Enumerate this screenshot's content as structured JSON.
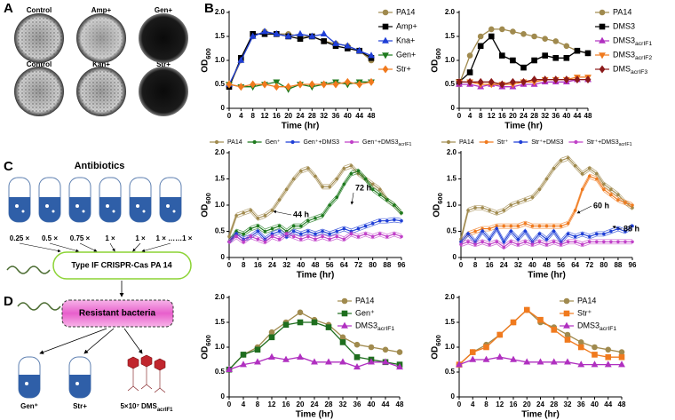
{
  "panel_labels": [
    "A",
    "B",
    "C",
    "D"
  ],
  "plates": {
    "labels": [
      "Control",
      "Amp+",
      "Gen+",
      "Control",
      "Kan+",
      "Str+"
    ]
  },
  "diagram": {
    "title": "Antibiotics",
    "concentrations": [
      "0.25 ×",
      "0.5 ×",
      "0.75 ×",
      "1 ×",
      "1 ×",
      "1 × ……1 ×"
    ],
    "strain": "Type IF CRISPR-Cas PA 14",
    "resistant": "Resistant bacteria",
    "outputs": [
      "Gen⁺",
      "Str+",
      "5×10⁷ DMSacrIF1"
    ]
  },
  "chart_data": [
    {
      "type": "line",
      "x_label": "Time (hr)",
      "y_label": "OD600",
      "legend": "right",
      "x": [
        0,
        4,
        8,
        12,
        16,
        20,
        24,
        28,
        32,
        36,
        40,
        44,
        48
      ],
      "xlim": [
        0,
        48
      ],
      "xticks": [
        0,
        4,
        8,
        12,
        16,
        20,
        24,
        28,
        32,
        36,
        40,
        44,
        48
      ],
      "ylim": [
        0,
        2
      ],
      "yticks": [
        0,
        0.5,
        {
          "value": 1,
          "label": "1.0"
        },
        1.5,
        {
          "value": 2,
          "label": "2.0"
        }
      ],
      "series": [
        {
          "name": "PA14",
          "color": "#a08a4e",
          "marker": "circle",
          "values": [
            0.45,
            1.0,
            1.5,
            1.6,
            1.55,
            1.55,
            1.5,
            1.5,
            1.4,
            1.35,
            1.3,
            1.2,
            1.0
          ]
        },
        {
          "name": "Amp+",
          "color": "#000000",
          "marker": "square",
          "values": [
            0.45,
            1.05,
            1.55,
            1.55,
            1.55,
            1.5,
            1.45,
            1.5,
            1.4,
            1.3,
            1.25,
            1.2,
            1.05
          ]
        },
        {
          "name": "Kna+",
          "color": "#1f3fd6",
          "marker": "triangle",
          "values": [
            0.5,
            1.0,
            1.5,
            1.6,
            1.55,
            1.5,
            1.55,
            1.5,
            1.55,
            1.35,
            1.3,
            1.2,
            1.1
          ]
        },
        {
          "name": "Gen+",
          "color": "#1e7a1e",
          "marker": "invtriangle",
          "values": [
            0.5,
            0.45,
            0.45,
            0.5,
            0.55,
            0.4,
            0.5,
            0.45,
            0.5,
            0.55,
            0.5,
            0.55,
            0.55
          ]
        },
        {
          "name": "Str+",
          "color": "#f07a1e",
          "marker": "diamond",
          "values": [
            0.5,
            0.45,
            0.5,
            0.5,
            0.45,
            0.45,
            0.5,
            0.5,
            0.5,
            0.5,
            0.55,
            0.5,
            0.55
          ]
        }
      ]
    },
    {
      "type": "line",
      "x_label": "Time (hr)",
      "y_label": "OD600",
      "legend": "right",
      "x": [
        0,
        4,
        8,
        12,
        16,
        20,
        24,
        28,
        32,
        36,
        40,
        44,
        48
      ],
      "xlim": [
        0,
        48
      ],
      "xticks": [
        0,
        4,
        8,
        12,
        16,
        20,
        24,
        28,
        32,
        36,
        40,
        44,
        48
      ],
      "ylim": [
        0,
        2
      ],
      "yticks": [
        0,
        0.5,
        {
          "value": 1,
          "label": "1.0"
        },
        1.5,
        {
          "value": 2,
          "label": "2.0"
        }
      ],
      "series": [
        {
          "name": "PA14",
          "color": "#a08a4e",
          "marker": "circle",
          "values": [
            0.5,
            1.1,
            1.5,
            1.65,
            1.65,
            1.6,
            1.55,
            1.5,
            1.45,
            1.4,
            1.3,
            1.2,
            1.15
          ]
        },
        {
          "name": "DMS3",
          "color": "#000000",
          "marker": "square",
          "values": [
            0.55,
            0.75,
            1.3,
            1.5,
            1.1,
            1.0,
            0.85,
            1.0,
            1.1,
            1.05,
            1.05,
            1.2,
            1.15
          ]
        },
        {
          "name": "DMS3acrIF1",
          "color": "#b030c0",
          "marker": "triangle",
          "values": [
            0.5,
            0.5,
            0.45,
            0.5,
            0.45,
            0.45,
            0.5,
            0.5,
            0.55,
            0.55,
            0.55,
            0.6,
            0.6
          ]
        },
        {
          "name": "DMS3acrIF2",
          "color": "#f07a1e",
          "marker": "invtriangle",
          "values": [
            0.55,
            0.55,
            0.5,
            0.5,
            0.5,
            0.5,
            0.55,
            0.55,
            0.6,
            0.6,
            0.6,
            0.65,
            0.65
          ]
        },
        {
          "name": "DMSacrIF3",
          "color": "#8b1a1a",
          "marker": "diamond",
          "values": [
            0.55,
            0.55,
            0.55,
            0.55,
            0.5,
            0.55,
            0.55,
            0.6,
            0.6,
            0.6,
            0.6,
            0.6,
            0.6
          ]
        }
      ]
    },
    {
      "type": "line",
      "x_label": "Time (hr)",
      "y_label": "OD600",
      "legend": "top",
      "annotations": [
        "44 h",
        "72 h"
      ],
      "x": [
        0,
        4,
        8,
        12,
        16,
        20,
        24,
        28,
        32,
        36,
        40,
        44,
        48,
        52,
        56,
        60,
        64,
        68,
        72,
        76,
        80,
        84,
        88,
        92,
        96
      ],
      "xlim": [
        0,
        96
      ],
      "xticks": [
        0,
        8,
        16,
        24,
        32,
        40,
        48,
        56,
        64,
        72,
        80,
        88,
        96
      ],
      "ylim": [
        0,
        2
      ],
      "yticks": [
        0,
        0.5,
        {
          "value": 1,
          "label": "1.0"
        },
        1.5,
        {
          "value": 2,
          "label": "2.0"
        }
      ],
      "series": [
        {
          "name": "PA14",
          "color": "#a08a4e",
          "marker": "circle",
          "values": [
            0.4,
            0.8,
            0.85,
            0.9,
            0.75,
            0.8,
            0.9,
            1.1,
            1.3,
            1.5,
            1.65,
            1.7,
            1.55,
            1.35,
            1.35,
            1.5,
            1.7,
            1.75,
            1.6,
            1.5,
            1.4,
            1.3,
            1.1,
            1.0,
            0.85
          ]
        },
        {
          "name": "Gen⁺",
          "color": "#1e7a1e",
          "marker": "circle",
          "values": [
            0.3,
            0.5,
            0.45,
            0.55,
            0.6,
            0.5,
            0.55,
            0.6,
            0.5,
            0.6,
            0.6,
            0.7,
            0.75,
            0.8,
            1.0,
            1.15,
            1.4,
            1.6,
            1.65,
            1.5,
            1.3,
            1.2,
            1.1,
            1.0,
            0.85
          ]
        },
        {
          "name": "Gen⁺+DMS3",
          "color": "#1f3fd6",
          "marker": "circle",
          "values": [
            0.3,
            0.45,
            0.35,
            0.4,
            0.5,
            0.35,
            0.45,
            0.5,
            0.4,
            0.5,
            0.45,
            0.5,
            0.45,
            0.5,
            0.45,
            0.5,
            0.55,
            0.5,
            0.55,
            0.6,
            0.65,
            0.7,
            0.7,
            0.72,
            0.7
          ]
        },
        {
          "name": "Gen⁺+DMS3acrIF1",
          "color": "#c040c8",
          "marker": "circle",
          "values": [
            0.3,
            0.4,
            0.3,
            0.4,
            0.35,
            0.3,
            0.4,
            0.35,
            0.45,
            0.4,
            0.35,
            0.4,
            0.35,
            0.4,
            0.35,
            0.4,
            0.35,
            0.45,
            0.4,
            0.45,
            0.4,
            0.45,
            0.4,
            0.45,
            0.4
          ]
        }
      ]
    },
    {
      "type": "line",
      "x_label": "Time (hr)",
      "y_label": "OD600",
      "legend": "top",
      "annotations": [
        "60 h",
        "88 h"
      ],
      "x": [
        0,
        4,
        8,
        12,
        16,
        20,
        24,
        28,
        32,
        36,
        40,
        44,
        48,
        52,
        56,
        60,
        64,
        68,
        72,
        76,
        80,
        84,
        88,
        92,
        96
      ],
      "xlim": [
        0,
        96
      ],
      "xticks": [
        0,
        8,
        16,
        24,
        32,
        40,
        48,
        56,
        64,
        72,
        80,
        88,
        96
      ],
      "ylim": [
        0,
        2
      ],
      "yticks": [
        0,
        0.5,
        {
          "value": 1,
          "label": "1.0"
        },
        1.5,
        {
          "value": 2,
          "label": "2.0"
        }
      ],
      "series": [
        {
          "name": "PA14",
          "color": "#a08a4e",
          "marker": "circle",
          "values": [
            0.35,
            0.9,
            0.95,
            0.95,
            0.9,
            0.85,
            0.9,
            1.0,
            1.05,
            1.1,
            1.15,
            1.3,
            1.5,
            1.7,
            1.85,
            1.9,
            1.75,
            1.6,
            1.7,
            1.6,
            1.4,
            1.3,
            1.2,
            1.05,
            0.95
          ]
        },
        {
          "name": "Str⁺",
          "color": "#f07a1e",
          "marker": "circle",
          "values": [
            0.3,
            0.45,
            0.5,
            0.55,
            0.55,
            0.6,
            0.6,
            0.6,
            0.6,
            0.65,
            0.6,
            0.6,
            0.6,
            0.6,
            0.6,
            0.65,
            0.9,
            1.3,
            1.55,
            1.5,
            1.3,
            1.2,
            1.1,
            1.05,
            1.0
          ]
        },
        {
          "name": "Str⁺+DMS3",
          "color": "#1f3fd6",
          "marker": "circle",
          "values": [
            0.3,
            0.45,
            0.3,
            0.5,
            0.35,
            0.55,
            0.3,
            0.5,
            0.35,
            0.5,
            0.3,
            0.45,
            0.35,
            0.5,
            0.3,
            0.45,
            0.4,
            0.45,
            0.4,
            0.45,
            0.45,
            0.5,
            0.55,
            0.5,
            0.6
          ]
        },
        {
          "name": "Str⁺+DMS3acrIF1",
          "color": "#c040c8",
          "marker": "circle",
          "values": [
            0.25,
            0.3,
            0.25,
            0.3,
            0.25,
            0.3,
            0.2,
            0.3,
            0.25,
            0.3,
            0.25,
            0.3,
            0.25,
            0.3,
            0.25,
            0.3,
            0.3,
            0.25,
            0.3,
            0.3,
            0.3,
            0.3,
            0.3,
            0.3,
            0.3
          ]
        }
      ]
    },
    {
      "type": "line",
      "x_label": "Time (hr)",
      "y_label": "OD600",
      "legend": "upper right",
      "x": [
        0,
        4,
        8,
        12,
        16,
        20,
        24,
        28,
        32,
        36,
        40,
        44,
        48
      ],
      "xlim": [
        0,
        48
      ],
      "xticks": [
        0,
        4,
        8,
        12,
        16,
        20,
        24,
        28,
        32,
        36,
        40,
        44,
        48
      ],
      "ylim": [
        0,
        2
      ],
      "yticks": [
        0,
        0.5,
        {
          "value": 1,
          "label": "1.0"
        },
        1.5,
        {
          "value": 2,
          "label": "2.0"
        }
      ],
      "series": [
        {
          "name": "PA14",
          "color": "#a08a4e",
          "marker": "circle",
          "values": [
            0.55,
            0.85,
            1.0,
            1.3,
            1.5,
            1.7,
            1.55,
            1.45,
            1.2,
            1.05,
            1.0,
            0.95,
            0.9
          ]
        },
        {
          "name": "Gen⁺",
          "color": "#1e6e1e",
          "marker": "square",
          "values": [
            0.55,
            0.85,
            0.95,
            1.2,
            1.45,
            1.5,
            1.5,
            1.4,
            1.1,
            0.8,
            0.75,
            0.7,
            0.65
          ]
        },
        {
          "name": "DMS3acrIF1",
          "color": "#b030c0",
          "marker": "triangle",
          "values": [
            0.55,
            0.65,
            0.7,
            0.8,
            0.75,
            0.8,
            0.7,
            0.7,
            0.7,
            0.6,
            0.7,
            0.7,
            0.6
          ]
        }
      ]
    },
    {
      "type": "line",
      "x_label": "Time (hr)",
      "y_label": "OD600",
      "legend": "upper right",
      "x": [
        0,
        4,
        8,
        12,
        16,
        20,
        24,
        28,
        32,
        36,
        40,
        44,
        48
      ],
      "xlim": [
        0,
        48
      ],
      "xticks": [
        0,
        4,
        8,
        12,
        16,
        20,
        24,
        28,
        32,
        36,
        40,
        44,
        48
      ],
      "ylim": [
        0,
        2
      ],
      "yticks": [
        0,
        0.5,
        {
          "value": 1,
          "label": "1.0"
        },
        1.5,
        {
          "value": 2,
          "label": "2.0"
        }
      ],
      "series": [
        {
          "name": "PA14",
          "color": "#a08a4e",
          "marker": "circle",
          "values": [
            0.65,
            0.9,
            1.05,
            1.25,
            1.5,
            1.75,
            1.5,
            1.4,
            1.25,
            1.1,
            1.0,
            0.95,
            0.9
          ]
        },
        {
          "name": "Str⁺",
          "color": "#f07a1e",
          "marker": "square",
          "values": [
            0.65,
            0.9,
            1.0,
            1.25,
            1.5,
            1.75,
            1.55,
            1.35,
            1.15,
            1.0,
            0.85,
            0.8,
            0.8
          ]
        },
        {
          "name": "DMS3acrIF1",
          "color": "#b030c0",
          "marker": "triangle",
          "values": [
            0.65,
            0.75,
            0.75,
            0.8,
            0.75,
            0.7,
            0.7,
            0.7,
            0.7,
            0.65,
            0.65,
            0.65,
            0.65
          ]
        }
      ]
    }
  ]
}
